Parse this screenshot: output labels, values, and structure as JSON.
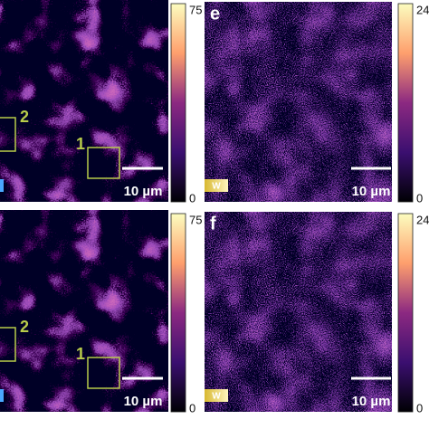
{
  "rows": [
    {
      "left": {
        "colorbar": {
          "max": 75,
          "min": 0
        },
        "roi_labels": [
          "1",
          "2"
        ],
        "scale_bar": "10 µm"
      },
      "right": {
        "panel_label": "e",
        "channel": "W",
        "colorbar": {
          "max": 24,
          "min": 0
        },
        "scale_bar": "10 µm"
      }
    },
    {
      "left": {
        "colorbar": {
          "max": 75,
          "min": 0
        },
        "roi_labels": [
          "1",
          "2"
        ],
        "scale_bar": "10 µm"
      },
      "right": {
        "panel_label": "f",
        "channel": "W",
        "colorbar": {
          "max": 24,
          "min": 0
        },
        "scale_bar": "10 µm"
      }
    }
  ]
}
